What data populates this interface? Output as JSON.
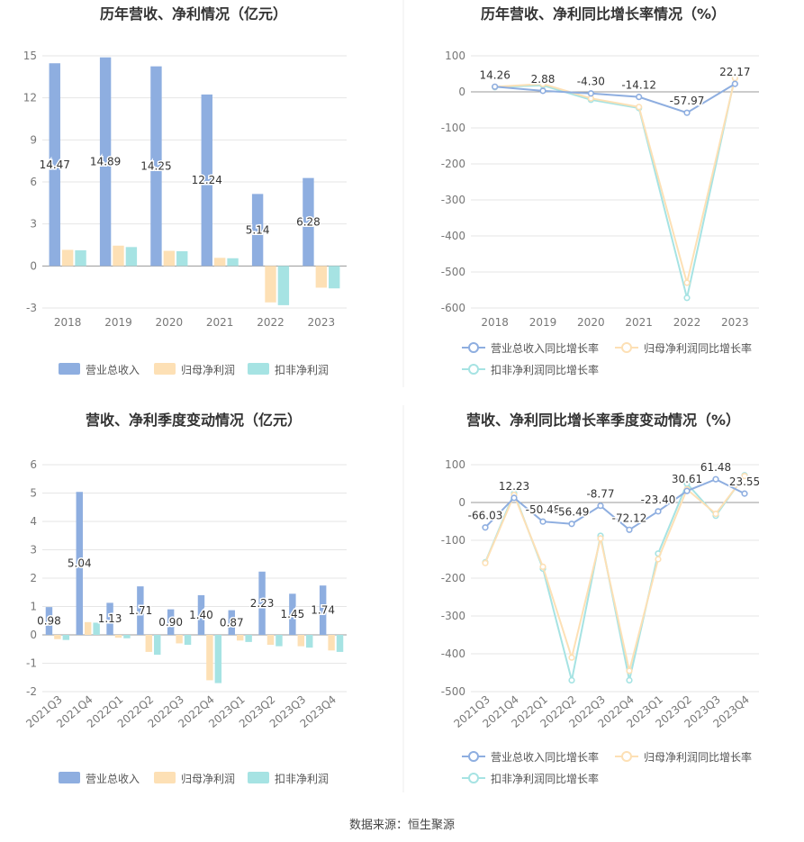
{
  "footer": {
    "source": "数据来源：恒生聚源"
  },
  "colors": {
    "revenue": "#8eaee0",
    "net_profit": "#fde0b5",
    "deducted_profit": "#a6e3e3",
    "line_revenue": "#8eaee0",
    "line_net_profit": "#fde0b5",
    "line_deducted": "#a6e3e3",
    "grid": "#e6e6e6",
    "axis_text": "#777777",
    "title_text": "#333333"
  },
  "chart_data": [
    {
      "type": "bar",
      "title": "历年营收、净利情况（亿元）",
      "categories": [
        "2018",
        "2019",
        "2020",
        "2021",
        "2022",
        "2023"
      ],
      "ylim": [
        -3,
        15
      ],
      "yticks": [
        -3,
        0,
        3,
        6,
        9,
        12,
        15
      ],
      "grid": true,
      "legend": "bottom",
      "series": [
        {
          "name": "营业总收入",
          "values": [
            14.47,
            14.89,
            14.25,
            12.24,
            5.14,
            6.28
          ],
          "labels": [
            "14.47",
            "14.89",
            "14.25",
            "12.24",
            "5.14",
            "6.28"
          ]
        },
        {
          "name": "归母净利润",
          "values": [
            1.15,
            1.45,
            1.08,
            0.58,
            -2.6,
            -1.55
          ]
        },
        {
          "name": "扣非净利润",
          "values": [
            1.12,
            1.35,
            1.05,
            0.55,
            -2.8,
            -1.6
          ]
        }
      ]
    },
    {
      "type": "line",
      "title": "历年营收、净利同比增长率情况（%）",
      "categories": [
        "2018",
        "2019",
        "2020",
        "2021",
        "2022",
        "2023"
      ],
      "ylim": [
        -600,
        100
      ],
      "yticks": [
        -600,
        -500,
        -400,
        -300,
        -200,
        -100,
        0,
        100
      ],
      "grid": true,
      "legend": "bottom",
      "series": [
        {
          "name": "营业总收入同比增长率",
          "values": [
            14.26,
            2.88,
            -4.3,
            -14.12,
            -57.97,
            22.17
          ],
          "labels": [
            "14.26",
            "2.88",
            "-4.30",
            "-14.12",
            "-57.97",
            "22.17"
          ]
        },
        {
          "name": "归母净利润同比增长率",
          "values": [
            14,
            22,
            -18,
            -42,
            -530,
            38
          ]
        },
        {
          "name": "扣非净利润同比增长率",
          "values": [
            13,
            18,
            -22,
            -45,
            -572,
            42
          ]
        }
      ]
    },
    {
      "type": "bar",
      "title": "营收、净利季度变动情况（亿元）",
      "categories": [
        "2021Q3",
        "2021Q4",
        "2022Q1",
        "2022Q2",
        "2022Q3",
        "2022Q4",
        "2023Q1",
        "2023Q2",
        "2023Q3",
        "2023Q4"
      ],
      "ylim": [
        -2,
        6
      ],
      "yticks": [
        -2,
        -1,
        0,
        1,
        2,
        3,
        4,
        5,
        6
      ],
      "grid": true,
      "legend": "bottom",
      "series": [
        {
          "name": "营业总收入",
          "values": [
            0.98,
            5.04,
            1.13,
            1.71,
            0.9,
            1.4,
            0.87,
            2.23,
            1.45,
            1.74
          ],
          "labels": [
            "0.98",
            "5.04",
            "1.13",
            "1.71",
            "0.90",
            "1.40",
            "0.87",
            "2.23",
            "1.45",
            "1.74"
          ]
        },
        {
          "name": "归母净利润",
          "values": [
            -0.15,
            0.45,
            -0.1,
            -0.6,
            -0.3,
            -1.6,
            -0.2,
            -0.35,
            -0.4,
            -0.55
          ]
        },
        {
          "name": "扣非净利润",
          "values": [
            -0.18,
            0.43,
            -0.12,
            -0.7,
            -0.35,
            -1.7,
            -0.25,
            -0.4,
            -0.45,
            -0.6
          ]
        }
      ]
    },
    {
      "type": "line",
      "title": "营收、净利同比增长率季度变动情况（%）",
      "categories": [
        "2021Q3",
        "2021Q4",
        "2022Q1",
        "2022Q2",
        "2022Q3",
        "2022Q4",
        "2023Q1",
        "2023Q2",
        "2023Q3",
        "2023Q4"
      ],
      "ylim": [
        -500,
        100
      ],
      "yticks": [
        -500,
        -400,
        -300,
        -200,
        -100,
        0,
        100
      ],
      "grid": true,
      "legend": "bottom",
      "series": [
        {
          "name": "营业总收入同比增长率",
          "values": [
            -66.03,
            12.23,
            -50.48,
            -56.49,
            -8.77,
            -72.12,
            -23.4,
            30.61,
            61.48,
            23.55
          ],
          "labels": [
            "-66.03",
            "12.23",
            "-50.48",
            "-56.49",
            "-8.77",
            "-72.12",
            "-23.40",
            "30.61",
            "61.48",
            "23.55"
          ]
        },
        {
          "name": "归母净利润同比增长率",
          "values": [
            -160,
            20,
            -170,
            -410,
            -95,
            -445,
            -150,
            35,
            -30,
            70
          ]
        },
        {
          "name": "扣非净利润同比增长率",
          "values": [
            -158,
            25,
            -175,
            -470,
            -88,
            -470,
            -135,
            50,
            -35,
            72
          ]
        }
      ]
    }
  ]
}
